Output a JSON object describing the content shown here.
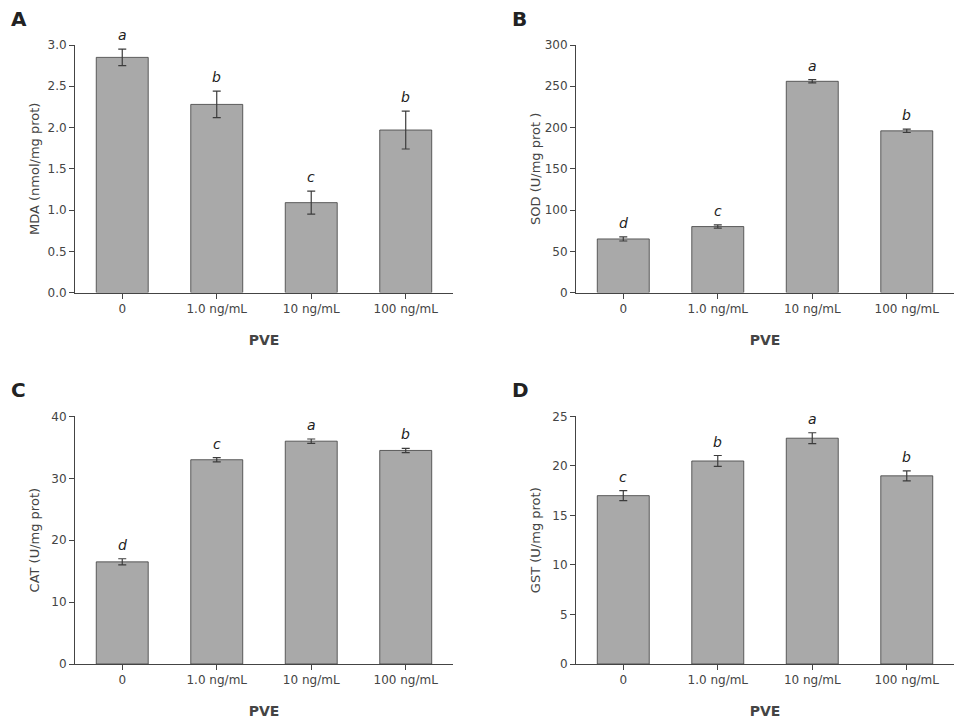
{
  "chart_data": [
    {
      "type": "bar",
      "title": "A",
      "ylabel": "MDA (nmol/mg prot)",
      "xlabel": "PVE",
      "categories": [
        "0",
        "1.0 ng/mL",
        "10 ng/mL",
        "100 ng/mL"
      ],
      "values": [
        2.85,
        2.28,
        1.09,
        1.97
      ],
      "errors": [
        0.1,
        0.16,
        0.14,
        0.23
      ],
      "annotations": [
        "a",
        "b",
        "c",
        "b"
      ],
      "color": "#a9a9a9",
      "ylim": [
        0,
        3.0
      ],
      "yticks": [
        {
          "value": 0.0,
          "label": "0.0"
        },
        0.5,
        {
          "value": 1.0,
          "label": "1.0"
        },
        1.5,
        {
          "value": 2.0,
          "label": "2.0"
        },
        2.5,
        {
          "value": 3.0,
          "label": "3.0"
        }
      ],
      "grid": false
    },
    {
      "type": "bar",
      "title": "B",
      "ylabel": "SOD (U/mg prot )",
      "xlabel": "PVE",
      "categories": [
        "0",
        "1.0 ng/mL",
        "10 ng/mL",
        "100 ng/mL"
      ],
      "values": [
        65,
        80,
        256,
        196
      ],
      "errors": [
        2.5,
        2.0,
        2.0,
        2.0
      ],
      "annotations": [
        "d",
        "c",
        "a",
        "b"
      ],
      "color": "#a9a9a9",
      "ylim": [
        0,
        300
      ],
      "yticks": [
        0,
        50,
        100,
        150,
        200,
        250,
        300
      ],
      "grid": false
    },
    {
      "type": "bar",
      "title": "C",
      "ylabel": "CAT (U/mg prot)",
      "xlabel": "PVE",
      "categories": [
        "0",
        "1.0 ng/mL",
        "10 ng/mL",
        "100 ng/mL"
      ],
      "values": [
        16.5,
        33.0,
        36.0,
        34.5
      ],
      "errors": [
        0.5,
        0.35,
        0.35,
        0.35
      ],
      "annotations": [
        "d",
        "c",
        "a",
        "b"
      ],
      "color": "#a9a9a9",
      "ylim": [
        0,
        40
      ],
      "yticks": [
        0,
        10,
        20,
        30,
        40
      ],
      "grid": false
    },
    {
      "type": "bar",
      "title": "D",
      "ylabel": "GST (U/mg prot)",
      "xlabel": "PVE",
      "categories": [
        "0",
        "1.0 ng/mL",
        "10 ng/mL",
        "100 ng/mL"
      ],
      "values": [
        17.0,
        20.5,
        22.8,
        19.0
      ],
      "errors": [
        0.5,
        0.55,
        0.55,
        0.5
      ],
      "annotations": [
        "c",
        "b",
        "a",
        "b"
      ],
      "color": "#a9a9a9",
      "ylim": [
        0,
        25
      ],
      "yticks": [
        0,
        5,
        10,
        15,
        20,
        25
      ],
      "grid": false
    }
  ]
}
